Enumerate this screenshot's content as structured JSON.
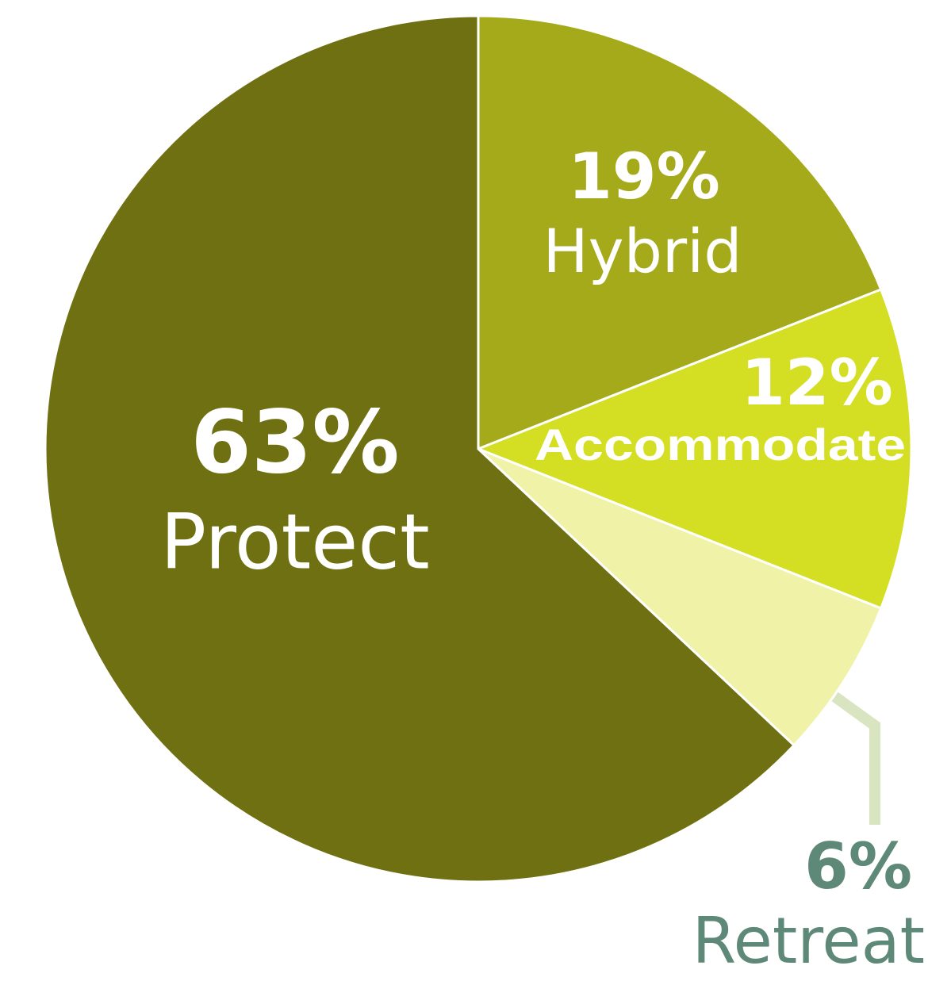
{
  "chart_data": {
    "type": "pie",
    "categories": [
      "Hybrid",
      "Accommodate",
      "Retreat",
      "Protect"
    ],
    "values": [
      19,
      12,
      6,
      63
    ],
    "value_labels": [
      "19%",
      "12%",
      "6%",
      "63%"
    ],
    "colors": [
      "#a5aa1a",
      "#d4df24",
      "#f0f2a8",
      "#6e7011"
    ]
  }
}
